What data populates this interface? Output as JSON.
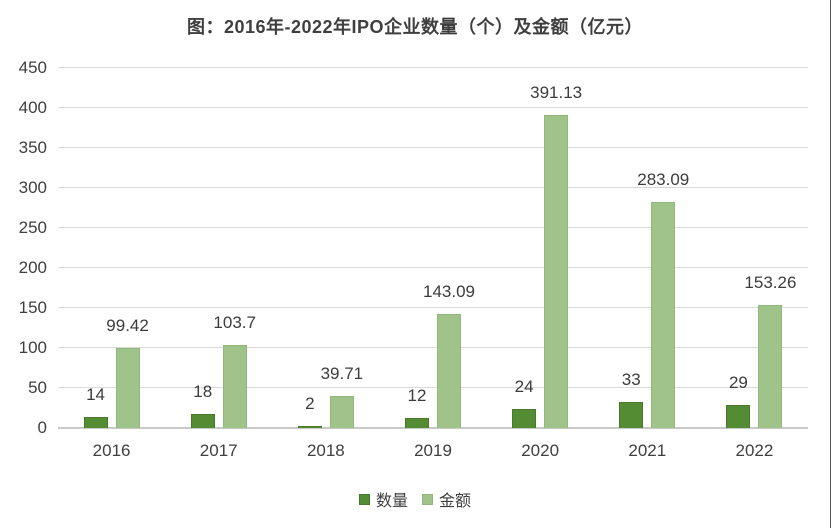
{
  "chart_data": {
    "type": "bar",
    "title": "图：2016年-2022年IPO企业数量（个）及金额（亿元）",
    "categories": [
      "2016",
      "2017",
      "2018",
      "2019",
      "2020",
      "2021",
      "2022"
    ],
    "series": [
      {
        "name": "数量",
        "color": "#538c33",
        "border_color": "#49782c",
        "values": [
          14,
          18,
          2,
          12,
          24,
          33,
          29
        ],
        "labels": [
          "14",
          "18",
          "2",
          "12",
          "24",
          "33",
          "29"
        ]
      },
      {
        "name": "金额",
        "color": "#9fc389",
        "border_color": "#92b77c",
        "values": [
          99.42,
          103.7,
          39.71,
          143.09,
          391.13,
          283.09,
          153.26
        ],
        "labels": [
          "99.42",
          "103.7",
          "39.71",
          "143.09",
          "391.13",
          "283.09",
          "153.26"
        ]
      }
    ],
    "yticks": [
      0,
      50,
      100,
      150,
      200,
      250,
      300,
      350,
      400,
      450
    ],
    "ylim": [
      0,
      450
    ],
    "ytick_step": 50,
    "grid": true,
    "legend_position": "bottom",
    "xlabel": "",
    "ylabel": ""
  },
  "colors": {
    "background": "#ffffff",
    "gridline": "#d9d9d9",
    "axis_line": "#c9c9c9",
    "text": "#3f3f3f",
    "right_edge_line": "#55565a"
  }
}
